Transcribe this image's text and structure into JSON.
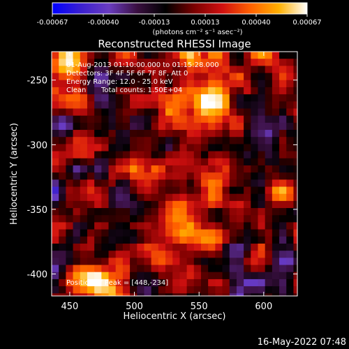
{
  "chart_data": {
    "type": "heatmap",
    "title": "Reconstructed RHESSI Image",
    "xlabel": "Heliocentric X (arcsec)",
    "ylabel": "Heliocentric Y (arcsec)",
    "xlim": [
      436,
      626
    ],
    "ylim": [
      -417,
      -228
    ],
    "xticks": [
      450,
      500,
      550,
      600
    ],
    "yticks": [
      -250,
      -300,
      -350,
      -400
    ],
    "colorbar": {
      "ticks": [
        "-0.00067",
        "-0.00040",
        "-0.00013",
        "0.00013",
        "0.00040",
        "0.00067"
      ],
      "range": [
        -0.00067,
        0.00067
      ],
      "unit_label": "(photons cm⁻² s⁻¹ asec⁻²)",
      "colors": [
        "#0000ff",
        "#3a1fd0",
        "#6a3cc0",
        "#3a0f40",
        "#000000",
        "#7a0000",
        "#d01010",
        "#ff6000",
        "#ffb000",
        "#ffffff"
      ]
    },
    "annotations": [
      "01-Aug-2013 01:10:00.000 to 01:15:28.000",
      "Detectors: 3F 4F 5F 6F 7F 8F, Att 0",
      "Energy Range: 12.0 - 25.0 keV",
      "Clean",
      "Total counts: 1.50E+04"
    ],
    "peak_label": "Position of Peak = [448,-234]",
    "sources": [
      {
        "x": 534,
        "y": -357,
        "peak": 0.00067
      },
      {
        "x": 448,
        "y": -234,
        "peak": 0.00067
      },
      {
        "x": 466,
        "y": -402,
        "peak": 0.0006
      },
      {
        "x": 560,
        "y": -272,
        "peak": 0.00045
      },
      {
        "x": 614,
        "y": -352,
        "peak": 0.0004
      },
      {
        "x": 525,
        "y": -237,
        "peak": 0.0004
      },
      {
        "x": 590,
        "y": -243,
        "peak": 0.00025
      }
    ]
  },
  "footer": {
    "timestamp": "16-May-2022 07:48"
  }
}
